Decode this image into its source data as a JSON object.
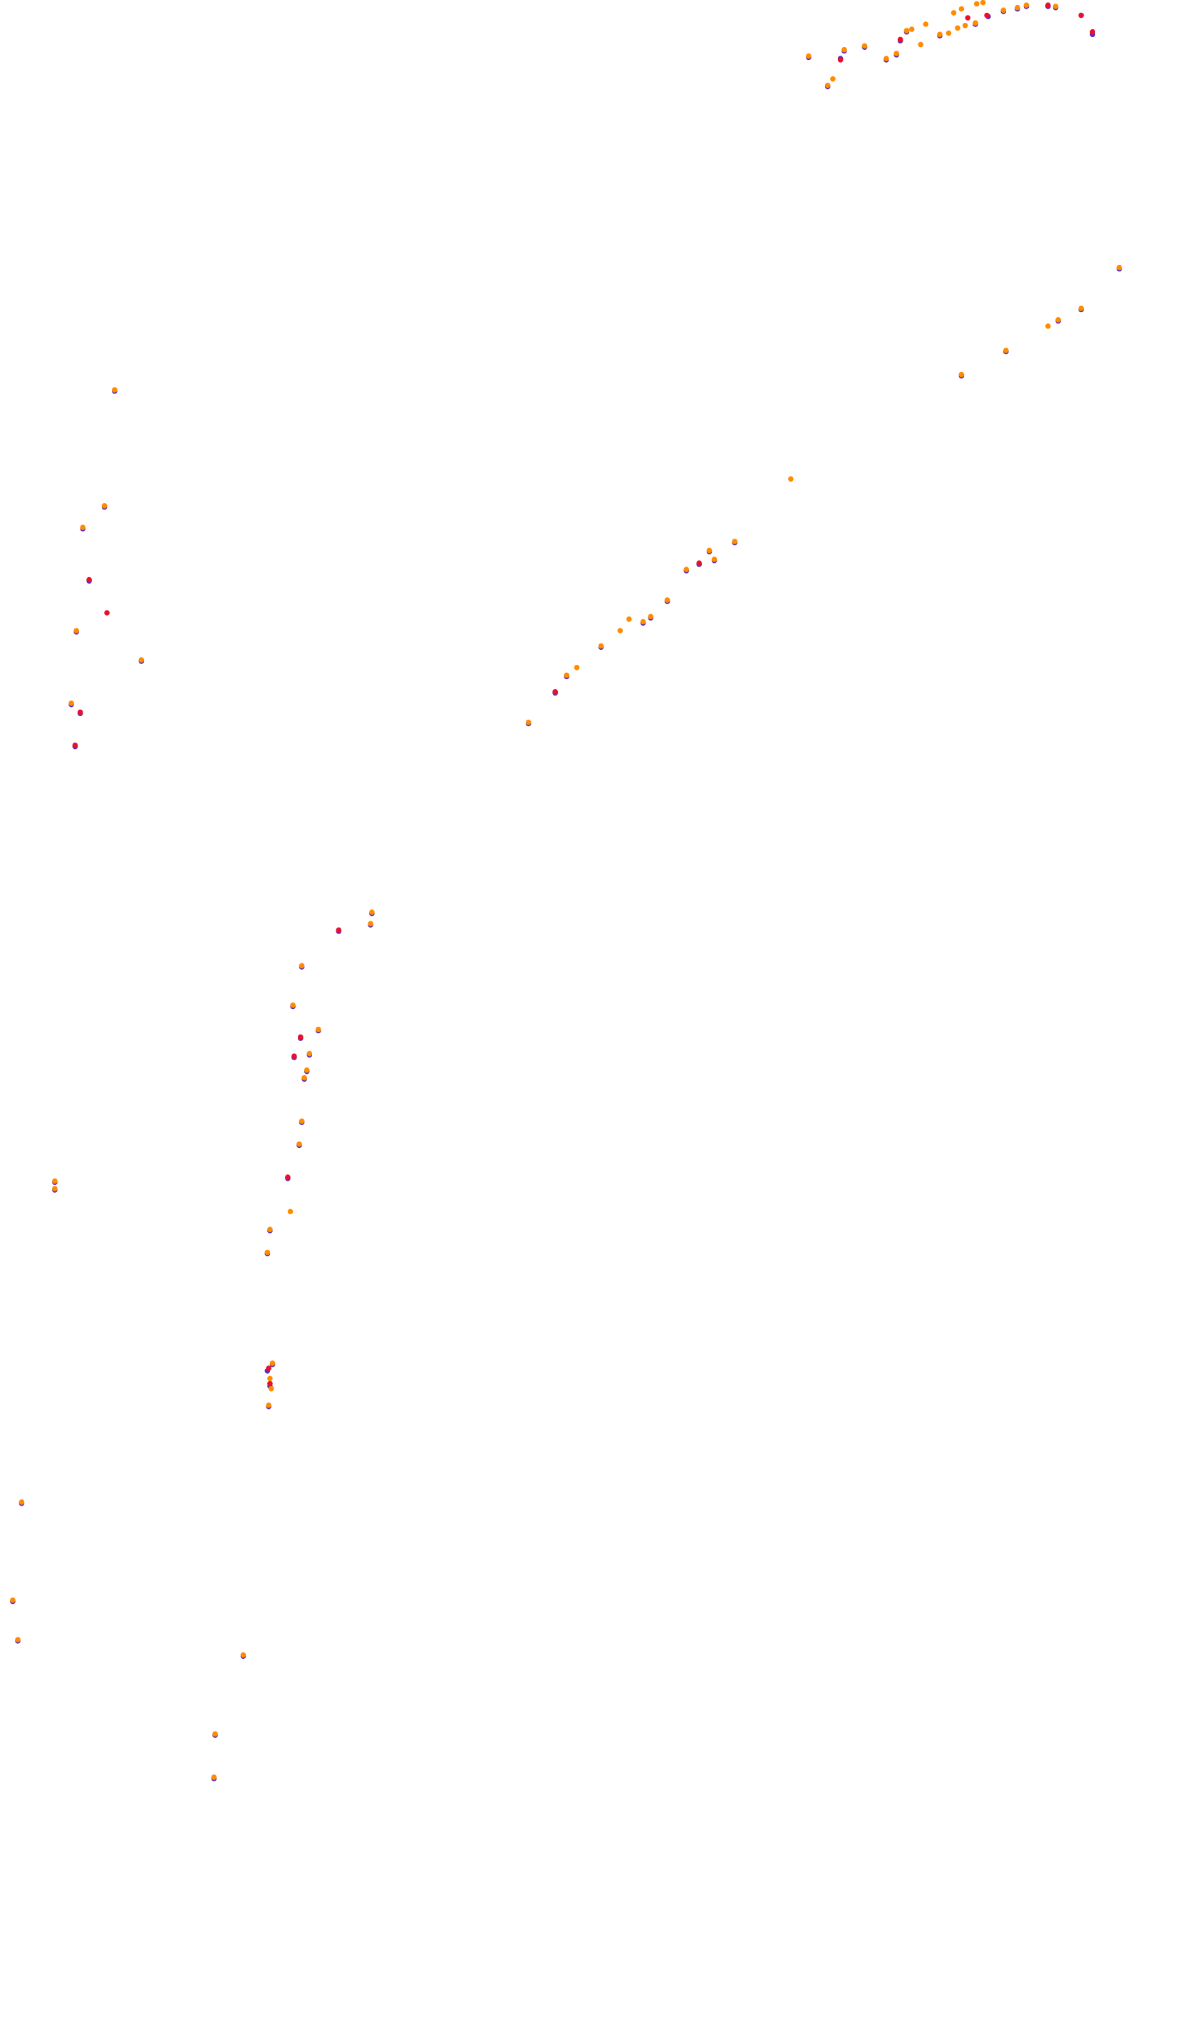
{
  "chart_data": {
    "type": "scatter",
    "title": "",
    "xlabel": "",
    "ylabel": "",
    "grid": false,
    "legend": "none",
    "axes_visible": false,
    "xlim": [
      0,
      940
    ],
    "ylim": [
      0,
      1584
    ],
    "y_direction": "down",
    "series": [
      {
        "color": "#5b2bbf",
        "marker": "circle",
        "points": [
          [
            635,
            45
          ],
          [
            650,
            68
          ],
          [
            660,
            46
          ],
          [
            663,
            40
          ],
          [
            679,
            37
          ],
          [
            696,
            47
          ],
          [
            704,
            43
          ],
          [
            707,
            32
          ],
          [
            712,
            25
          ],
          [
            738,
            28
          ],
          [
            766,
            19
          ],
          [
            776,
            13
          ],
          [
            788,
            9
          ],
          [
            799,
            7
          ],
          [
            806,
            5
          ],
          [
            823,
            5
          ],
          [
            829,
            6
          ],
          [
            849,
            12
          ],
          [
            858,
            27
          ],
          [
            879,
            211
          ],
          [
            849,
            243
          ],
          [
            831,
            252
          ],
          [
            790,
            276
          ],
          [
            755,
            295
          ],
          [
            577,
            426
          ],
          [
            561,
            440
          ],
          [
            557,
            433
          ],
          [
            549,
            443
          ],
          [
            539,
            448
          ],
          [
            524,
            472
          ],
          [
            511,
            485
          ],
          [
            505,
            489
          ],
          [
            472,
            508
          ],
          [
            445,
            531
          ],
          [
            436,
            544
          ],
          [
            415,
            568
          ],
          [
            90,
            307
          ],
          [
            82,
            398
          ],
          [
            65,
            415
          ],
          [
            70,
            456
          ],
          [
            60,
            496
          ],
          [
            111,
            519
          ],
          [
            56,
            553
          ],
          [
            63,
            560
          ],
          [
            59,
            586
          ],
          [
            292,
            717
          ],
          [
            291,
            726
          ],
          [
            266,
            731
          ],
          [
            237,
            759
          ],
          [
            230,
            790
          ],
          [
            250,
            809
          ],
          [
            236,
            815
          ],
          [
            243,
            828
          ],
          [
            231,
            830
          ],
          [
            241,
            841
          ],
          [
            239,
            847
          ],
          [
            237,
            881
          ],
          [
            235,
            899
          ],
          [
            226,
            925
          ],
          [
            43,
            928
          ],
          [
            43,
            934
          ],
          [
            212,
            966
          ],
          [
            210,
            984
          ],
          [
            214,
            1071
          ],
          [
            210,
            1076
          ],
          [
            212,
            1088
          ],
          [
            211,
            1104
          ],
          [
            17,
            1180
          ],
          [
            10,
            1257
          ],
          [
            14,
            1288
          ],
          [
            191,
            1300
          ],
          [
            169,
            1362
          ],
          [
            168,
            1396
          ]
        ]
      },
      {
        "color": "#e8112d",
        "marker": "circle",
        "points": [
          [
            660,
            47
          ],
          [
            707,
            31
          ],
          [
            760,
            14
          ],
          [
            775,
            12
          ],
          [
            823,
            4
          ],
          [
            849,
            12
          ],
          [
            858,
            25
          ],
          [
            549,
            442
          ],
          [
            436,
            543
          ],
          [
            70,
            455
          ],
          [
            84,
            481
          ],
          [
            63,
            559
          ],
          [
            59,
            585
          ],
          [
            266,
            730
          ],
          [
            236,
            814
          ],
          [
            231,
            829
          ],
          [
            226,
            924
          ],
          [
            211,
            1074
          ],
          [
            212,
            1086
          ]
        ]
      },
      {
        "color": "#ff8c00",
        "marker": "circle",
        "points": [
          [
            635,
            44
          ],
          [
            654,
            62
          ],
          [
            650,
            67
          ],
          [
            663,
            39
          ],
          [
            679,
            36
          ],
          [
            696,
            46
          ],
          [
            704,
            42
          ],
          [
            712,
            24
          ],
          [
            716,
            23
          ],
          [
            723,
            35
          ],
          [
            727,
            19
          ],
          [
            738,
            27
          ],
          [
            745,
            26
          ],
          [
            749,
            10
          ],
          [
            752,
            22
          ],
          [
            755,
            7
          ],
          [
            758,
            20
          ],
          [
            766,
            18
          ],
          [
            767,
            3
          ],
          [
            772,
            2
          ],
          [
            788,
            8
          ],
          [
            799,
            6
          ],
          [
            806,
            4
          ],
          [
            829,
            5
          ],
          [
            879,
            210
          ],
          [
            849,
            242
          ],
          [
            831,
            251
          ],
          [
            823,
            256
          ],
          [
            790,
            275
          ],
          [
            755,
            294
          ],
          [
            621,
            376
          ],
          [
            577,
            425
          ],
          [
            561,
            439
          ],
          [
            557,
            432
          ],
          [
            539,
            447
          ],
          [
            524,
            471
          ],
          [
            511,
            484
          ],
          [
            505,
            488
          ],
          [
            494,
            486
          ],
          [
            487,
            495
          ],
          [
            472,
            507
          ],
          [
            453,
            524
          ],
          [
            445,
            530
          ],
          [
            415,
            567
          ],
          [
            90,
            306
          ],
          [
            82,
            397
          ],
          [
            65,
            414
          ],
          [
            60,
            495
          ],
          [
            111,
            518
          ],
          [
            56,
            552
          ],
          [
            292,
            716
          ],
          [
            291,
            725
          ],
          [
            237,
            758
          ],
          [
            230,
            789
          ],
          [
            250,
            808
          ],
          [
            243,
            827
          ],
          [
            241,
            840
          ],
          [
            239,
            846
          ],
          [
            237,
            880
          ],
          [
            235,
            898
          ],
          [
            228,
            951
          ],
          [
            43,
            927
          ],
          [
            43,
            933
          ],
          [
            212,
            965
          ],
          [
            210,
            983
          ],
          [
            214,
            1070
          ],
          [
            212,
            1082
          ],
          [
            213,
            1090
          ],
          [
            211,
            1103
          ],
          [
            17,
            1179
          ],
          [
            10,
            1256
          ],
          [
            14,
            1287
          ],
          [
            191,
            1299
          ],
          [
            169,
            1361
          ],
          [
            168,
            1395
          ]
        ]
      }
    ]
  }
}
